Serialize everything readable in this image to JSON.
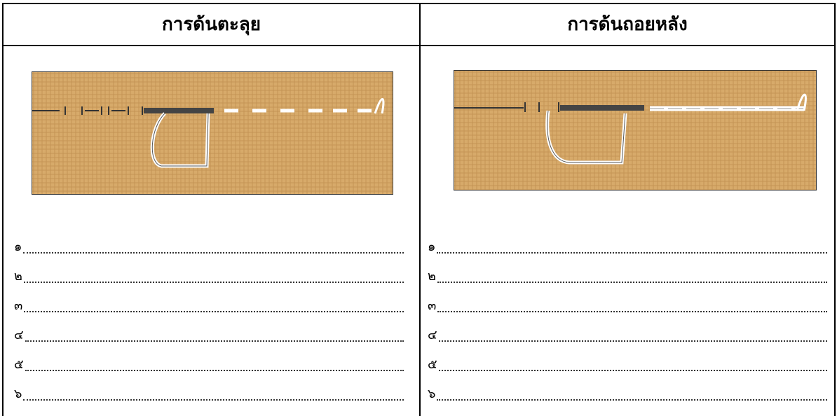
{
  "columns": [
    {
      "title": "การด้นตะลุย",
      "items": [
        "๑",
        "๒",
        "๓",
        "๔",
        "๕",
        "๖"
      ]
    },
    {
      "title": "การด้นถอยหลัง",
      "items": [
        "๑",
        "๒",
        "๓",
        "๔",
        "๕",
        "๖"
      ]
    }
  ]
}
